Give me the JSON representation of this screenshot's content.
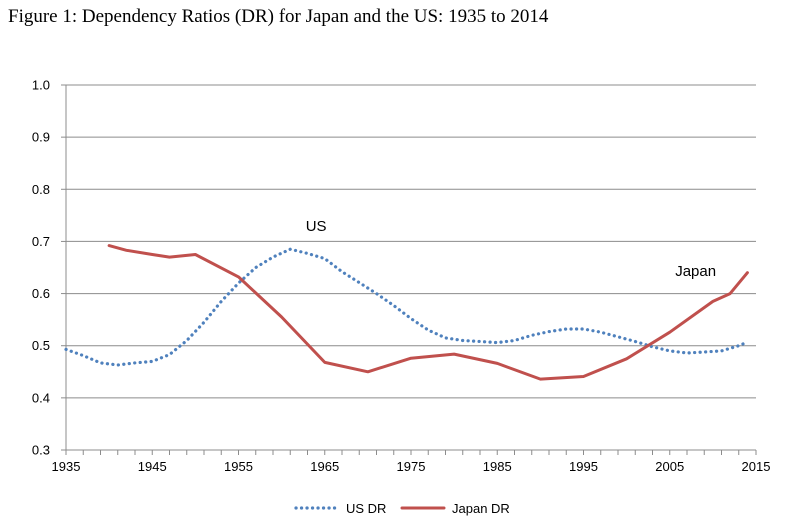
{
  "figure_title": "Figure 1: Dependency Ratios (DR) for Japan and the US: 1935 to 2014",
  "chart_data": {
    "type": "line",
    "title": "Figure 1: Dependency Ratios (DR) for Japan and the US: 1935 to 2014",
    "xlabel": "",
    "ylabel": "",
    "xlim": [
      1935,
      2015
    ],
    "ylim": [
      0.3,
      1.0
    ],
    "x_ticks": [
      "1935",
      "1945",
      "1955",
      "1965",
      "1975",
      "1985",
      "1995",
      "2005",
      "2015"
    ],
    "y_ticks": [
      "0.3",
      "0.4",
      "0.5",
      "0.6",
      "0.7",
      "0.8",
      "0.9",
      "1.0"
    ],
    "x_tick_values": [
      1935,
      1945,
      1955,
      1965,
      1975,
      1985,
      1995,
      2005,
      2015
    ],
    "y_tick_values": [
      0.3,
      0.4,
      0.5,
      0.6,
      0.7,
      0.8,
      0.9,
      1.0
    ],
    "grid": true,
    "legend_position": "bottom",
    "series": [
      {
        "name": "US DR",
        "color": "#4F81BD",
        "style": "dotted",
        "points": [
          [
            1935,
            0.493
          ],
          [
            1937,
            0.481
          ],
          [
            1939,
            0.467
          ],
          [
            1941,
            0.463
          ],
          [
            1943,
            0.467
          ],
          [
            1945,
            0.47
          ],
          [
            1947,
            0.483
          ],
          [
            1949,
            0.51
          ],
          [
            1951,
            0.545
          ],
          [
            1953,
            0.585
          ],
          [
            1955,
            0.62
          ],
          [
            1957,
            0.65
          ],
          [
            1959,
            0.67
          ],
          [
            1961,
            0.685
          ],
          [
            1963,
            0.677
          ],
          [
            1965,
            0.667
          ],
          [
            1967,
            0.642
          ],
          [
            1969,
            0.621
          ],
          [
            1971,
            0.6
          ],
          [
            1973,
            0.577
          ],
          [
            1975,
            0.552
          ],
          [
            1977,
            0.53
          ],
          [
            1979,
            0.515
          ],
          [
            1981,
            0.51
          ],
          [
            1983,
            0.508
          ],
          [
            1985,
            0.506
          ],
          [
            1987,
            0.51
          ],
          [
            1989,
            0.52
          ],
          [
            1991,
            0.527
          ],
          [
            1993,
            0.532
          ],
          [
            1995,
            0.532
          ],
          [
            1997,
            0.526
          ],
          [
            1999,
            0.517
          ],
          [
            2001,
            0.508
          ],
          [
            2003,
            0.498
          ],
          [
            2005,
            0.49
          ],
          [
            2007,
            0.486
          ],
          [
            2009,
            0.488
          ],
          [
            2011,
            0.49
          ],
          [
            2013,
            0.5
          ],
          [
            2014,
            0.507
          ]
        ]
      },
      {
        "name": "Japan DR",
        "color": "#C0504D",
        "style": "solid",
        "points": [
          [
            1940,
            0.692
          ],
          [
            1942,
            0.683
          ],
          [
            1945,
            0.675
          ],
          [
            1947,
            0.67
          ],
          [
            1950,
            0.675
          ],
          [
            1955,
            0.632
          ],
          [
            1960,
            0.555
          ],
          [
            1965,
            0.468
          ],
          [
            1970,
            0.45
          ],
          [
            1975,
            0.476
          ],
          [
            1980,
            0.484
          ],
          [
            1985,
            0.466
          ],
          [
            1990,
            0.436
          ],
          [
            1995,
            0.441
          ],
          [
            2000,
            0.475
          ],
          [
            2005,
            0.526
          ],
          [
            2010,
            0.585
          ],
          [
            2012,
            0.6
          ],
          [
            2014,
            0.64
          ]
        ]
      }
    ],
    "annotations": [
      {
        "text": "US",
        "x": 1964,
        "y": 0.72
      },
      {
        "text": "Japan",
        "x": 2008,
        "y": 0.634
      }
    ],
    "legend": [
      "US DR",
      "Japan DR"
    ]
  }
}
